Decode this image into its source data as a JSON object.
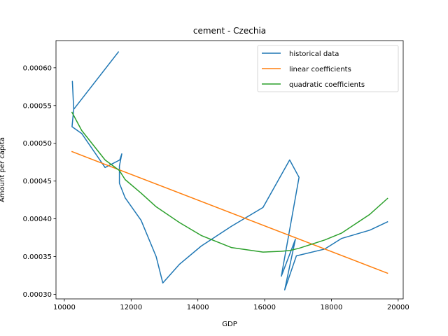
{
  "chart_data": {
    "type": "line",
    "title": "cement - Czechia",
    "xlabel": "GDP",
    "ylabel": "Amount per capita",
    "xlim": [
      9750,
      20150
    ],
    "ylim": [
      0.000294,
      0.000636
    ],
    "x_ticks": [
      10000,
      12000,
      14000,
      16000,
      18000,
      20000
    ],
    "x_tick_labels": [
      "10000",
      "12000",
      "14000",
      "16000",
      "18000",
      "20000"
    ],
    "y_ticks": [
      0.0003,
      0.00035,
      0.0004,
      0.00045,
      0.0005,
      0.00055,
      0.0006
    ],
    "y_tick_labels": [
      "0.00030",
      "0.00035",
      "0.00040",
      "0.00045",
      "0.00050",
      "0.00055",
      "0.00060"
    ],
    "grid": false,
    "legend_position": "top-right",
    "series": [
      {
        "name": "historical data",
        "color": "#1f77b4",
        "x": [
          11620,
          10280,
          10240,
          10280,
          10230,
          10520,
          11220,
          11660,
          11720,
          11650,
          11650,
          11820,
          12300,
          12750,
          12950,
          13450,
          14100,
          15000,
          15950,
          16750,
          17030,
          16500,
          16920,
          16600,
          16950,
          17800,
          18300,
          19150,
          19680
        ],
        "y": [
          0.000621,
          0.000545,
          0.000582,
          0.000545,
          0.000522,
          0.000513,
          0.000468,
          0.000478,
          0.000486,
          0.00047,
          0.000447,
          0.000428,
          0.000398,
          0.00035,
          0.000315,
          0.00034,
          0.000364,
          0.00039,
          0.000415,
          0.000478,
          0.000455,
          0.000324,
          0.000373,
          0.000306,
          0.000351,
          0.00036,
          0.000374,
          0.000385,
          0.000396
        ]
      },
      {
        "name": "linear coefficients",
        "color": "#ff7f0e",
        "x": [
          10230,
          19680
        ],
        "y": [
          0.000489,
          0.000328
        ]
      },
      {
        "name": "quadratic coefficients",
        "color": "#2ca02c",
        "x": [
          10230,
          10520,
          11220,
          11650,
          11820,
          12300,
          12750,
          13450,
          14100,
          15000,
          15950,
          16500,
          16750,
          17030,
          17800,
          18300,
          19150,
          19680
        ],
        "y": [
          0.000541,
          0.000517,
          0.000478,
          0.000464,
          0.000452,
          0.000434,
          0.000416,
          0.000395,
          0.000378,
          0.000362,
          0.000356,
          0.000357,
          0.000358,
          0.000361,
          0.000372,
          0.000381,
          0.000406,
          0.000427
        ]
      }
    ]
  }
}
